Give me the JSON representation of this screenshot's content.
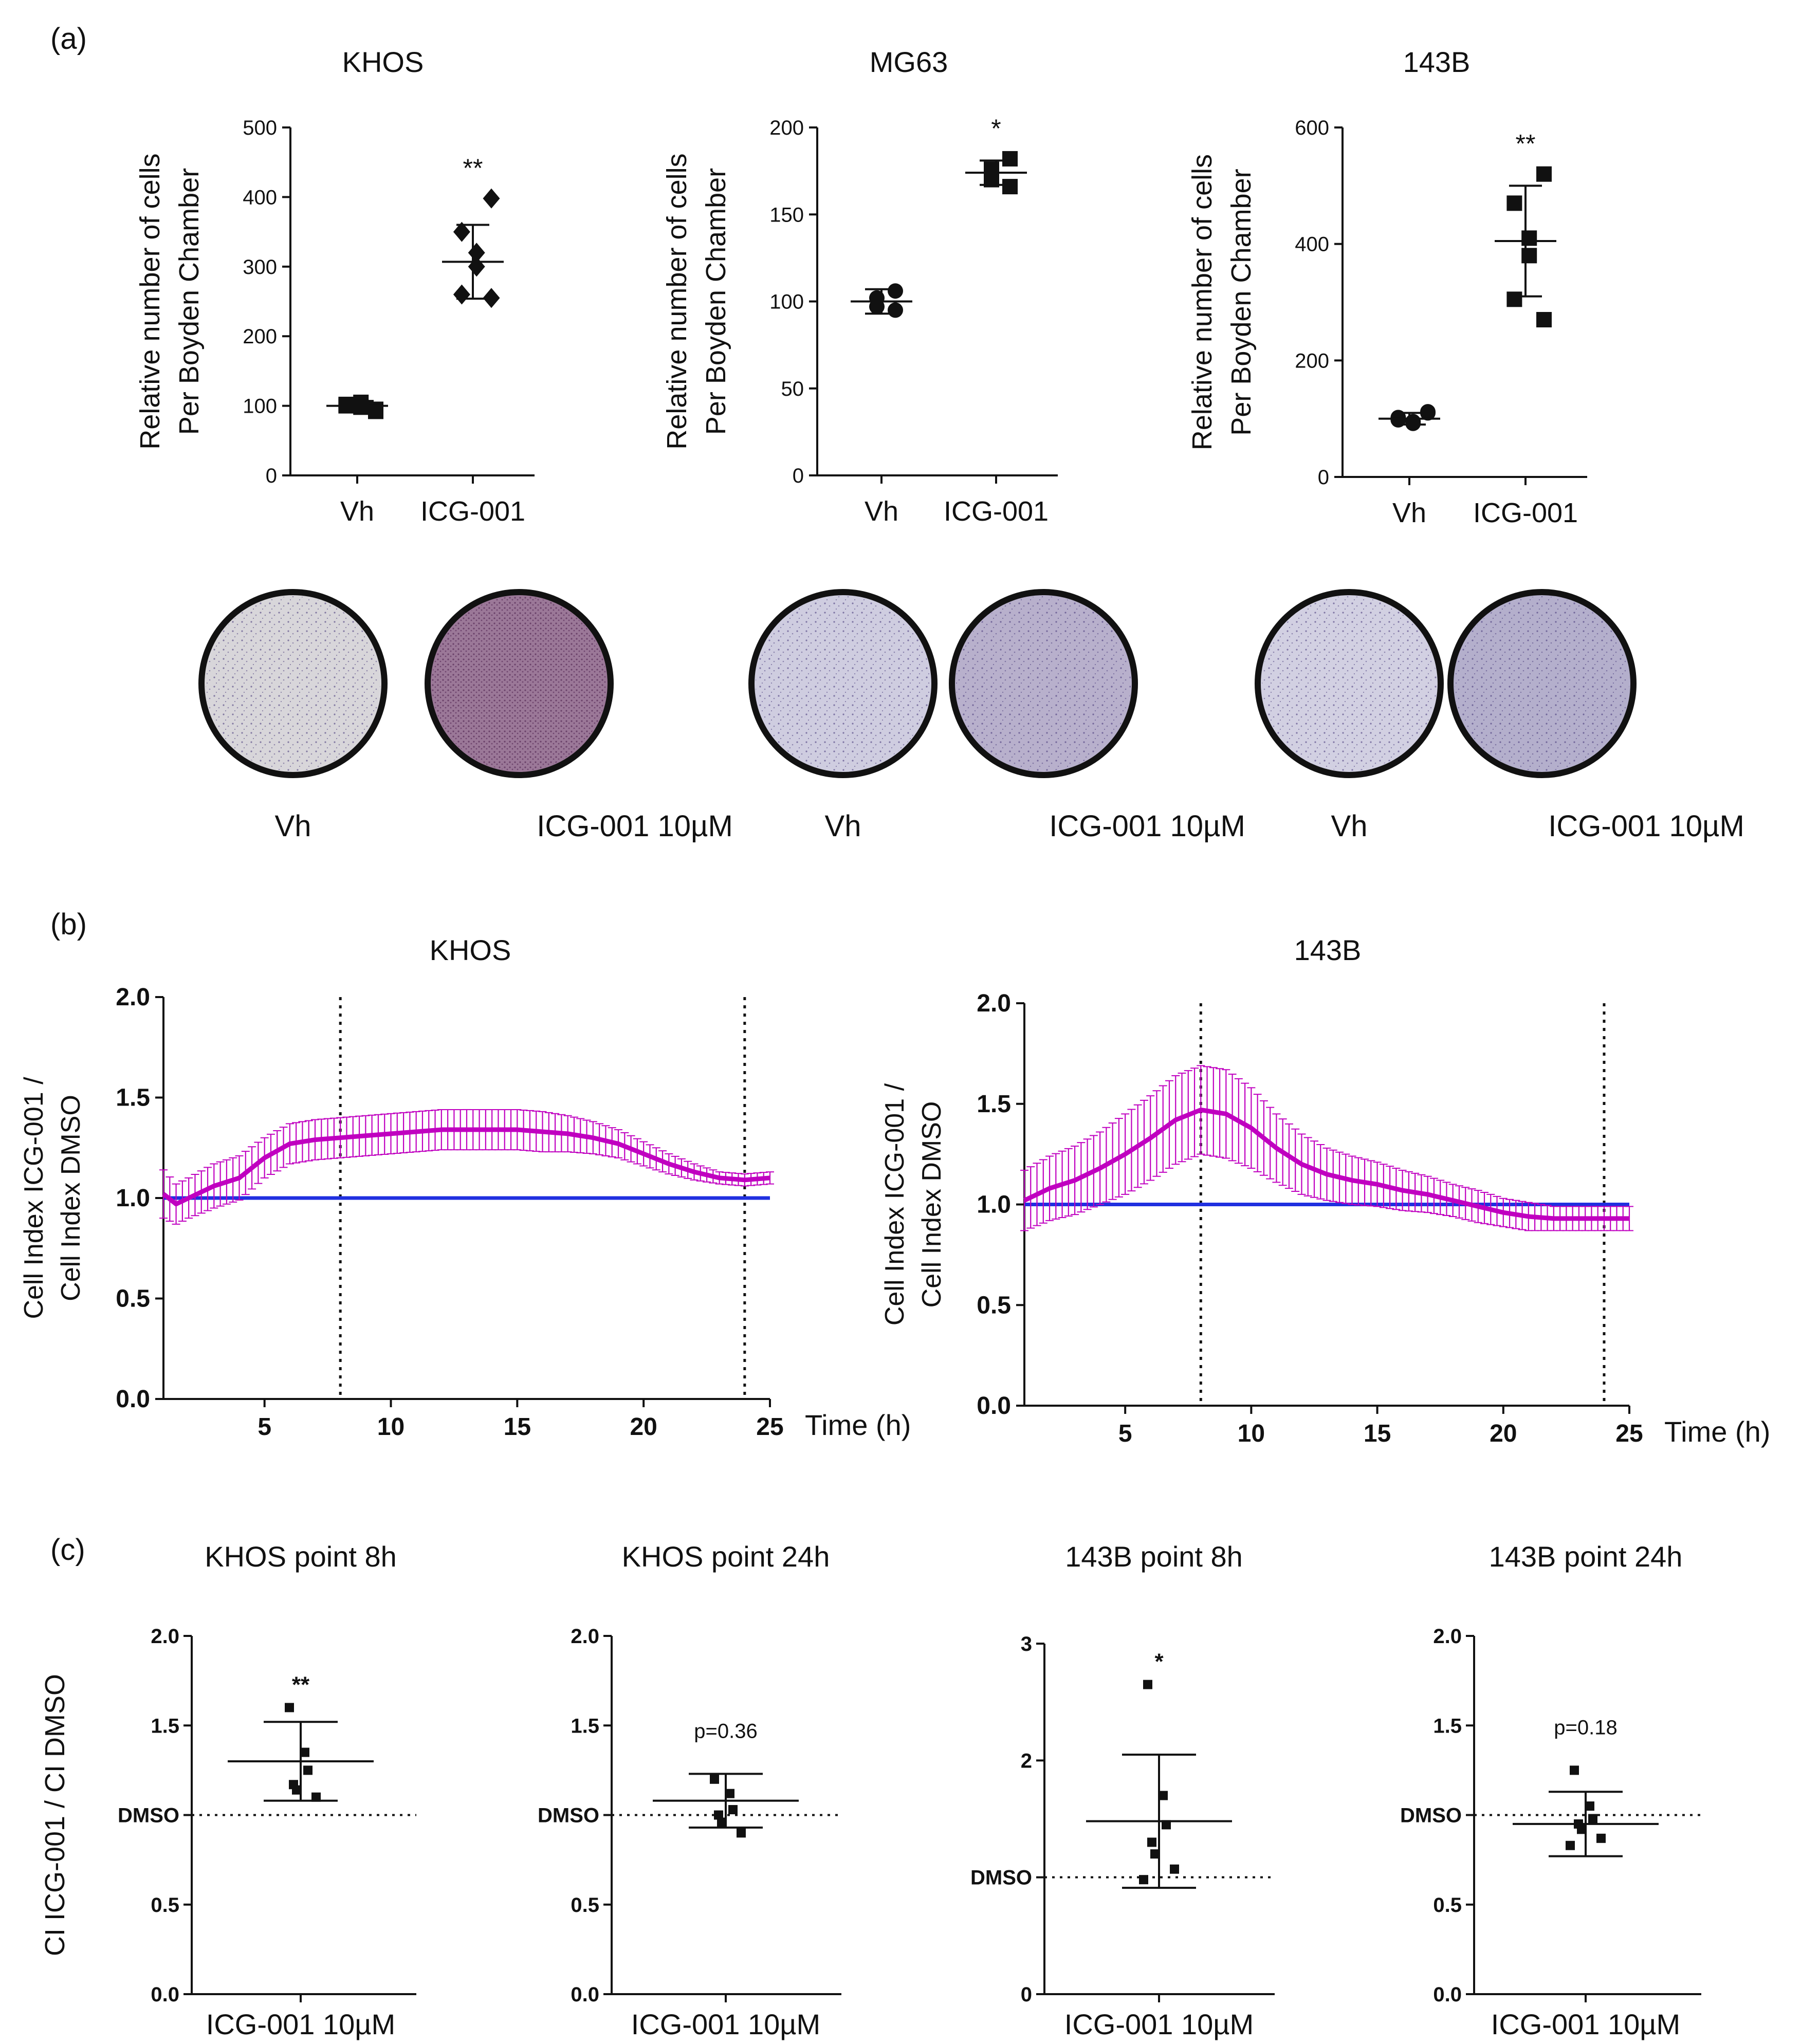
{
  "colors": {
    "text": "#111111",
    "magenta": "#c000c0",
    "blue": "#2030e0",
    "dish_edge": "#111111"
  },
  "chart_data": [
    {
      "id": "a1",
      "type": "scatter",
      "panel_label": "(a)",
      "title": "KHOS",
      "ylabel_lines": [
        "Relative number of cells",
        "Per Boyden Chamber"
      ],
      "categories": [
        "Vh",
        "ICG-001"
      ],
      "ylim": [
        0,
        500
      ],
      "yticks": [
        0,
        100,
        200,
        300,
        400,
        500
      ],
      "annotations": [
        {
          "category": "ICG-001",
          "text": "**"
        }
      ],
      "groups": [
        {
          "name": "Vh",
          "marker": "square",
          "points": [
            95,
            100,
            105,
            98,
            102,
            92
          ],
          "mean": 100,
          "sd": 7
        },
        {
          "name": "ICG-001",
          "marker": "diamond",
          "points": [
            398,
            350,
            320,
            300,
            260,
            255
          ],
          "mean": 307,
          "sd": 53
        }
      ]
    },
    {
      "id": "a2",
      "type": "scatter",
      "title": "MG63",
      "ylabel_lines": [
        "Relative number of cells",
        "Per Boyden Chamber"
      ],
      "categories": [
        "Vh",
        "ICG-001"
      ],
      "ylim": [
        0,
        200
      ],
      "yticks": [
        0,
        50,
        100,
        150,
        200
      ],
      "annotations": [
        {
          "category": "ICG-001",
          "text": "*"
        }
      ],
      "groups": [
        {
          "name": "Vh",
          "marker": "circle",
          "points": [
            106,
            102,
            97,
            95
          ],
          "mean": 100,
          "sd": 7
        },
        {
          "name": "ICG-001",
          "marker": "square",
          "points": [
            182,
            176,
            170,
            166
          ],
          "mean": 174,
          "sd": 7
        }
      ]
    },
    {
      "id": "a3",
      "type": "scatter",
      "title": "143B",
      "ylabel_lines": [
        "Relative number of cells",
        "Per Boyden Chamber"
      ],
      "categories": [
        "Vh",
        "ICG-001"
      ],
      "ylim": [
        0,
        600
      ],
      "yticks": [
        0,
        200,
        400,
        600
      ],
      "annotations": [
        {
          "category": "ICG-001",
          "text": "**"
        }
      ],
      "groups": [
        {
          "name": "Vh",
          "marker": "circle",
          "points": [
            110,
            98,
            92,
            95,
            102,
            112
          ],
          "mean": 100,
          "sd": 10
        },
        {
          "name": "ICG-001",
          "marker": "square",
          "points": [
            520,
            470,
            410,
            380,
            305,
            270
          ],
          "mean": 405,
          "sd": 95
        }
      ]
    },
    {
      "id": "b1",
      "type": "line",
      "panel_label": "(b)",
      "title": "KHOS",
      "ylabel_lines": [
        "Cell Index ICG-001 /",
        "Cell Index DMSO"
      ],
      "xlabel": "Time (h)",
      "xlim": [
        1,
        25
      ],
      "xticks": [
        5,
        10,
        15,
        20,
        25
      ],
      "ylim": [
        0,
        2
      ],
      "yticks": [
        "0.0",
        "0.5",
        "1.0",
        "1.5",
        "2.0"
      ],
      "vlines": [
        8,
        24
      ],
      "series": [
        {
          "name": "ICG-001",
          "color": "#c000c0",
          "x": [
            1,
            1.5,
            2,
            3,
            4,
            5,
            6,
            7,
            8,
            9,
            10,
            11,
            12,
            13,
            14,
            15,
            16,
            17,
            18,
            19,
            20,
            21,
            22,
            23,
            24,
            25
          ],
          "y": [
            1.02,
            0.97,
            1.0,
            1.06,
            1.1,
            1.2,
            1.27,
            1.29,
            1.3,
            1.31,
            1.32,
            1.33,
            1.34,
            1.34,
            1.34,
            1.34,
            1.33,
            1.32,
            1.3,
            1.27,
            1.22,
            1.17,
            1.13,
            1.1,
            1.09,
            1.1
          ],
          "err": [
            0.12,
            0.1,
            0.1,
            0.11,
            0.11,
            0.1,
            0.1,
            0.1,
            0.1,
            0.1,
            0.1,
            0.1,
            0.1,
            0.1,
            0.1,
            0.1,
            0.1,
            0.09,
            0.08,
            0.07,
            0.06,
            0.05,
            0.04,
            0.03,
            0.03,
            0.03
          ]
        },
        {
          "name": "DMSO",
          "color": "#2030e0",
          "x": [
            1,
            25
          ],
          "y": [
            1.0,
            1.0
          ]
        }
      ]
    },
    {
      "id": "b2",
      "type": "line",
      "title": "143B",
      "ylabel_lines": [
        "Cell Index ICG-001 /",
        "Cell Index DMSO"
      ],
      "xlabel": "Time (h)",
      "xlim": [
        1,
        25
      ],
      "xticks": [
        5,
        10,
        15,
        20,
        25
      ],
      "ylim": [
        0,
        2
      ],
      "yticks": [
        "0.0",
        "0.5",
        "1.0",
        "1.5",
        "2.0"
      ],
      "vlines": [
        8,
        24
      ],
      "series": [
        {
          "name": "ICG-001",
          "color": "#c000c0",
          "x": [
            1,
            2,
            3,
            4,
            5,
            6,
            7,
            8,
            9,
            10,
            11,
            12,
            13,
            14,
            15,
            16,
            17,
            18,
            19,
            20,
            21,
            22,
            23,
            24,
            25
          ],
          "y": [
            1.02,
            1.08,
            1.12,
            1.18,
            1.25,
            1.33,
            1.42,
            1.47,
            1.45,
            1.38,
            1.28,
            1.2,
            1.15,
            1.12,
            1.1,
            1.07,
            1.05,
            1.02,
            0.99,
            0.96,
            0.94,
            0.93,
            0.93,
            0.93,
            0.93
          ],
          "err": [
            0.15,
            0.16,
            0.17,
            0.18,
            0.2,
            0.21,
            0.22,
            0.22,
            0.22,
            0.2,
            0.17,
            0.15,
            0.13,
            0.12,
            0.11,
            0.1,
            0.09,
            0.08,
            0.08,
            0.07,
            0.07,
            0.06,
            0.06,
            0.06,
            0.06
          ]
        },
        {
          "name": "DMSO",
          "color": "#2030e0",
          "x": [
            1,
            25
          ],
          "y": [
            1.0,
            1.0
          ]
        }
      ]
    },
    {
      "id": "c1",
      "type": "scatter",
      "panel_label": "(c)",
      "title": "KHOS point 8h",
      "ylabel_lines": [
        "CI ICG-001 / CI DMSO"
      ],
      "xlabel": "ICG-001 10µM",
      "ylim": [
        0,
        2
      ],
      "yticks": [
        "0.0",
        "0.5",
        "1.0",
        "1.5",
        "2.0"
      ],
      "ref_label": "DMSO",
      "ref_value": 1.0,
      "annotation": "**",
      "points": [
        1.6,
        1.35,
        1.25,
        1.17,
        1.14,
        1.1
      ],
      "mean": 1.3,
      "sd": 0.22
    },
    {
      "id": "c2",
      "type": "scatter",
      "title": "KHOS point 24h",
      "ylabel_lines": [],
      "xlabel": "ICG-001 10µM",
      "ylim": [
        0,
        2
      ],
      "yticks": [
        "0.0",
        "0.5",
        "1.0",
        "1.5",
        "2.0"
      ],
      "ref_label": "DMSO",
      "ref_value": 1.0,
      "annotation": "p=0.36",
      "points": [
        1.2,
        1.12,
        1.03,
        1.0,
        0.96,
        0.9
      ],
      "mean": 1.08,
      "sd": 0.15
    },
    {
      "id": "c3",
      "type": "scatter",
      "title": "143B point 8h",
      "ylabel_lines": [],
      "xlabel": "ICG-001 10µM",
      "ylim": [
        0,
        3
      ],
      "yticks": [
        "0",
        "1",
        "2",
        "3"
      ],
      "ref_label": "DMSO",
      "ref_value": 1.0,
      "annotation": "*",
      "points": [
        2.65,
        1.7,
        1.45,
        1.3,
        1.2,
        1.07,
        0.98
      ],
      "mean": 1.48,
      "sd": 0.57
    },
    {
      "id": "c4",
      "type": "scatter",
      "title": "143B point 24h",
      "ylabel_lines": [],
      "xlabel": "ICG-001 10µM",
      "ylim": [
        0,
        2
      ],
      "yticks": [
        "0.0",
        "0.5",
        "1.0",
        "1.5",
        "2.0"
      ],
      "ref_label": "DMSO",
      "ref_value": 1.0,
      "annotation": "p=0.18",
      "points": [
        1.25,
        1.05,
        0.98,
        0.95,
        0.92,
        0.87,
        0.83
      ],
      "mean": 0.95,
      "sd": 0.18
    }
  ],
  "dish_groups": [
    {
      "cell_line": "KHOS",
      "labels": [
        "Vh",
        "ICG-001 10µM"
      ],
      "tints": [
        "#d8d6da",
        "#9b7898"
      ]
    },
    {
      "cell_line": "MG63",
      "labels": [
        "Vh",
        "ICG-001 10µM"
      ],
      "tints": [
        "#cfcde0",
        "#b8b0cc"
      ]
    },
    {
      "cell_line": "143B",
      "labels": [
        "Vh",
        "ICG-001 10µM"
      ],
      "tints": [
        "#d2d0e2",
        "#b4afcc"
      ]
    }
  ]
}
